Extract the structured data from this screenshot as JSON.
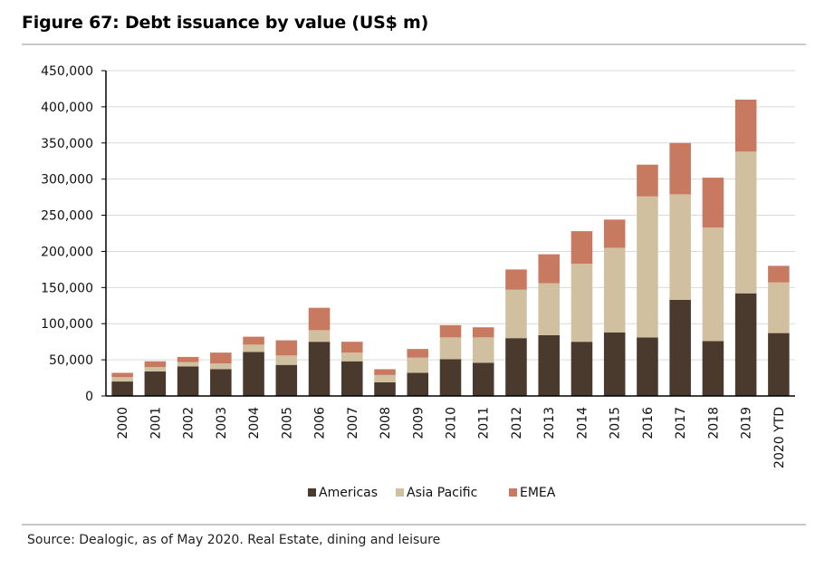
{
  "header": {
    "title": "Figure 67: Debt issuance by value (US$ m)"
  },
  "footer": {
    "source": "Source:  Dealogic, as of May 2020. Real Estate, dining and leisure"
  },
  "colors": {
    "Americas": "#4a3a2e",
    "Asia Pacific": "#d1c0a0",
    "EMEA": "#c87a60"
  },
  "chart_data": {
    "type": "bar",
    "stacked": true,
    "title": "Figure 67: Debt issuance by value (US$ m)",
    "xlabel": "",
    "ylabel": "",
    "ylim": [
      0,
      450000
    ],
    "yticks": [
      0,
      50000,
      100000,
      150000,
      200000,
      250000,
      300000,
      350000,
      400000,
      450000
    ],
    "ytick_labels": [
      "0",
      "50,000",
      "100,000",
      "150,000",
      "200,000",
      "250,000",
      "300,000",
      "350,000",
      "400,000",
      "450,000"
    ],
    "grid": true,
    "legend_position": "bottom",
    "categories": [
      "2000",
      "2001",
      "2002",
      "2003",
      "2004",
      "2005",
      "2006",
      "2007",
      "2008",
      "2009",
      "2010",
      "2011",
      "2012",
      "2013",
      "2014",
      "2015",
      "2016",
      "2017",
      "2018",
      "2019",
      "2020 YTD"
    ],
    "series": [
      {
        "name": "Americas",
        "values": [
          20000,
          34000,
          41000,
          37000,
          61000,
          43000,
          75000,
          48000,
          19000,
          32000,
          51000,
          46000,
          80000,
          84000,
          75000,
          88000,
          81000,
          133000,
          76000,
          142000,
          87000
        ]
      },
      {
        "name": "Asia Pacific",
        "values": [
          6000,
          6000,
          6000,
          8000,
          10000,
          13000,
          16000,
          12000,
          10000,
          21000,
          30000,
          35000,
          67000,
          72000,
          108000,
          117000,
          195000,
          146000,
          157000,
          196000,
          70000
        ]
      },
      {
        "name": "EMEA",
        "values": [
          6000,
          8000,
          7000,
          15000,
          11000,
          21000,
          31000,
          15000,
          8000,
          12000,
          17000,
          14000,
          28000,
          40000,
          45000,
          39000,
          44000,
          71000,
          69000,
          72000,
          23000
        ]
      }
    ]
  }
}
